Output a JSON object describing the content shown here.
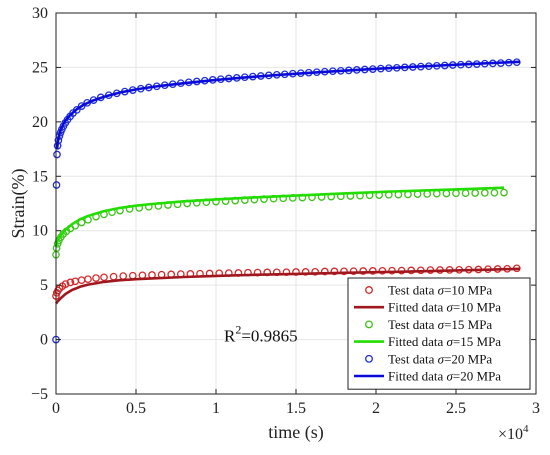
{
  "chart_data": {
    "type": "line",
    "title": "",
    "xlabel": "time (s)",
    "ylabel": "Strain(%)",
    "x_multiplier_label": "×10",
    "x_multiplier_exp": "4",
    "xlim": [
      0,
      30000
    ],
    "ylim": [
      -5,
      30
    ],
    "xticks": [
      0,
      5000,
      10000,
      15000,
      20000,
      25000,
      30000
    ],
    "xtick_labels": [
      "0",
      "0.5",
      "1",
      "1.5",
      "2",
      "2.5",
      "3"
    ],
    "yticks": [
      -5,
      0,
      5,
      10,
      15,
      20,
      25,
      30
    ],
    "ytick_labels": [
      "−5",
      "0",
      "5",
      "10",
      "15",
      "20",
      "25",
      "30"
    ],
    "grid": true,
    "legend_position": "bottom-right",
    "annotation": {
      "text": "R",
      "sup": "2",
      "rest": "=0.9865",
      "x": 10500,
      "y": -0.2
    },
    "series": [
      {
        "name": "Test data σ=10 MPa",
        "legend_prefix": "Test data ",
        "legend_sym": "σ",
        "legend_suffix": "=10 MPa",
        "kind": "markers",
        "color": "#d62728",
        "x": [
          0,
          50,
          120,
          220,
          400,
          600,
          900,
          1200,
          1600,
          2000,
          2500,
          3000,
          3600,
          4200,
          4800,
          5400,
          6000,
          6600,
          7200,
          7800,
          8400,
          9000,
          9600,
          10200,
          10800,
          11400,
          12000,
          12600,
          13200,
          13800,
          14400,
          15000,
          15600,
          16200,
          16800,
          17400,
          18000,
          18600,
          19200,
          19800,
          20400,
          21000,
          21600,
          22200,
          22800,
          23400,
          24000,
          24600,
          25200,
          25800,
          26400,
          27000,
          27600,
          28200,
          28800
        ],
        "y": [
          4.0,
          4.3,
          4.5,
          4.7,
          4.9,
          5.1,
          5.25,
          5.35,
          5.45,
          5.55,
          5.65,
          5.72,
          5.78,
          5.83,
          5.87,
          5.9,
          5.93,
          5.96,
          5.99,
          6.01,
          6.03,
          6.05,
          6.07,
          6.09,
          6.11,
          6.12,
          6.14,
          6.15,
          6.17,
          6.18,
          6.19,
          6.21,
          6.22,
          6.23,
          6.25,
          6.26,
          6.27,
          6.28,
          6.3,
          6.31,
          6.32,
          6.33,
          6.34,
          6.35,
          6.36,
          6.38,
          6.39,
          6.4,
          6.41,
          6.42,
          6.44,
          6.46,
          6.48,
          6.5,
          6.55
        ]
      },
      {
        "name": "Fitted data σ=10 MPa",
        "legend_prefix": "Fitted data ",
        "legend_sym": "σ",
        "legend_suffix": "=10 MPa",
        "kind": "line",
        "color": "#a0171e",
        "x": [
          0,
          100,
          300,
          600,
          1000,
          1500,
          2000,
          3000,
          4000,
          5000,
          6000,
          8000,
          10000,
          12000,
          15000,
          18000,
          21000,
          24000,
          27000,
          29000
        ],
        "y": [
          3.3,
          3.5,
          3.8,
          4.2,
          4.55,
          4.85,
          5.05,
          5.3,
          5.45,
          5.55,
          5.62,
          5.75,
          5.85,
          5.93,
          6.03,
          6.13,
          6.22,
          6.32,
          6.42,
          6.5
        ]
      },
      {
        "name": "Test data σ=15 MPa",
        "legend_prefix": "Test data ",
        "legend_sym": "σ",
        "legend_suffix": "=15 MPa",
        "kind": "markers",
        "color": "#3ec21a",
        "x": [
          0,
          40,
          100,
          180,
          300,
          450,
          650,
          900,
          1200,
          1600,
          2000,
          2500,
          3000,
          3500,
          4000,
          4600,
          5200,
          5800,
          6400,
          7000,
          7600,
          8200,
          8800,
          9400,
          10000,
          10600,
          11200,
          11800,
          12400,
          13000,
          13600,
          14200,
          14800,
          15400,
          16000,
          16600,
          17200,
          17800,
          18400,
          19000,
          19600,
          20200,
          20800,
          21400,
          22000,
          22600,
          23200,
          23800,
          24400,
          25000,
          25600,
          26200,
          26800,
          27400,
          28000
        ],
        "y": [
          7.8,
          8.4,
          8.8,
          9.1,
          9.4,
          9.7,
          9.95,
          10.2,
          10.45,
          10.75,
          11.0,
          11.3,
          11.5,
          11.7,
          11.85,
          12.0,
          12.1,
          12.2,
          12.28,
          12.36,
          12.43,
          12.5,
          12.56,
          12.62,
          12.67,
          12.72,
          12.77,
          12.81,
          12.86,
          12.9,
          12.94,
          12.98,
          13.01,
          13.04,
          13.07,
          13.1,
          13.13,
          13.16,
          13.19,
          13.22,
          13.25,
          13.27,
          13.3,
          13.32,
          13.34,
          13.36,
          13.38,
          13.4,
          13.42,
          13.44,
          13.45,
          13.46,
          13.47,
          13.48,
          13.5
        ]
      },
      {
        "name": "Fitted data σ=15 MPa",
        "legend_prefix": "Fitted data ",
        "legend_sym": "σ",
        "legend_suffix": "=15 MPa",
        "kind": "line",
        "color": "#22dd00",
        "x": [
          0,
          100,
          300,
          600,
          1000,
          1500,
          2000,
          3000,
          4000,
          5000,
          6000,
          8000,
          10000,
          12000,
          15000,
          18000,
          21000,
          24000,
          27000,
          28000
        ],
        "y": [
          8.6,
          9.1,
          9.6,
          10.1,
          10.6,
          11.05,
          11.35,
          11.8,
          12.1,
          12.3,
          12.45,
          12.7,
          12.88,
          13.03,
          13.23,
          13.43,
          13.6,
          13.75,
          13.9,
          13.95
        ]
      },
      {
        "name": "Test data σ=20 MPa",
        "legend_prefix": "Test data ",
        "legend_sym": "σ",
        "legend_suffix": "=20 MPa",
        "kind": "markers",
        "color": "#1f2fd6",
        "x": [
          0,
          30,
          60,
          100,
          150,
          210,
          280,
          360,
          460,
          580,
          720,
          880,
          1060,
          1300,
          1600,
          1950,
          2350,
          2800,
          3300,
          3800,
          4300,
          4800,
          5300,
          5800,
          6300,
          6800,
          7300,
          7800,
          8300,
          8800,
          9300,
          9800,
          10300,
          10800,
          11300,
          11800,
          12300,
          12800,
          13300,
          13800,
          14300,
          14800,
          15300,
          15800,
          16300,
          16800,
          17300,
          17800,
          18300,
          18800,
          19300,
          19800,
          20300,
          20800,
          21300,
          21800,
          22300,
          22800,
          23300,
          23800,
          24300,
          24800,
          25300,
          25800,
          26300,
          26800,
          27300,
          27800,
          28300,
          28800
        ],
        "y": [
          0,
          14.2,
          17.0,
          17.8,
          18.3,
          18.7,
          19.0,
          19.3,
          19.6,
          19.9,
          20.2,
          20.5,
          20.8,
          21.1,
          21.45,
          21.75,
          22.0,
          22.25,
          22.45,
          22.62,
          22.78,
          22.92,
          23.05,
          23.16,
          23.27,
          23.37,
          23.46,
          23.55,
          23.63,
          23.71,
          23.78,
          23.85,
          23.92,
          23.98,
          24.04,
          24.1,
          24.16,
          24.21,
          24.27,
          24.32,
          24.37,
          24.42,
          24.47,
          24.52,
          24.56,
          24.61,
          24.65,
          24.69,
          24.73,
          24.77,
          24.81,
          24.85,
          24.89,
          24.93,
          24.97,
          25.0,
          25.04,
          25.08,
          25.11,
          25.15,
          25.18,
          25.22,
          25.25,
          25.28,
          25.31,
          25.34,
          25.37,
          25.4,
          25.43,
          25.48
        ]
      },
      {
        "name": "Fitted data σ=20 MPa",
        "legend_prefix": "Fitted data ",
        "legend_sym": "σ",
        "legend_suffix": "=20 MPa",
        "kind": "line",
        "color": "#0a0adc",
        "x": [
          60,
          150,
          300,
          500,
          800,
          1200,
          1700,
          2300,
          3000,
          4000,
          5000,
          6500,
          8000,
          10000,
          12000,
          14000,
          16000,
          18000,
          20000,
          22000,
          24000,
          26000,
          28000,
          29000
        ],
        "y": [
          17.5,
          18.5,
          19.3,
          19.9,
          20.5,
          21.05,
          21.55,
          21.95,
          22.3,
          22.7,
          22.98,
          23.3,
          23.55,
          23.85,
          24.1,
          24.32,
          24.52,
          24.7,
          24.87,
          25.03,
          25.18,
          25.32,
          25.45,
          25.52
        ]
      }
    ]
  }
}
